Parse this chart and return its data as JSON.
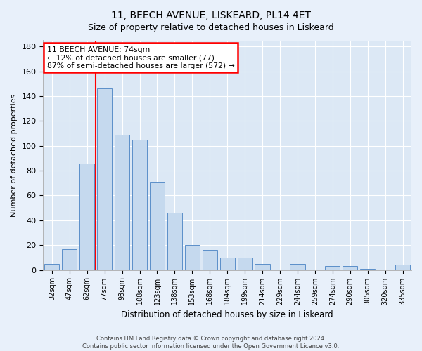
{
  "title1": "11, BEECH AVENUE, LISKEARD, PL14 4ET",
  "title2": "Size of property relative to detached houses in Liskeard",
  "xlabel": "Distribution of detached houses by size in Liskeard",
  "ylabel": "Number of detached properties",
  "categories": [
    "32sqm",
    "47sqm",
    "62sqm",
    "77sqm",
    "93sqm",
    "108sqm",
    "123sqm",
    "138sqm",
    "153sqm",
    "168sqm",
    "184sqm",
    "199sqm",
    "214sqm",
    "229sqm",
    "244sqm",
    "259sqm",
    "274sqm",
    "290sqm",
    "305sqm",
    "320sqm",
    "335sqm"
  ],
  "values": [
    5,
    17,
    86,
    146,
    109,
    105,
    71,
    46,
    20,
    16,
    10,
    10,
    5,
    0,
    5,
    0,
    3,
    3,
    1,
    0,
    4
  ],
  "bar_color": "#c5d9ee",
  "bar_edge_color": "#5b8fc9",
  "annotation_line1": "11 BEECH AVENUE: 74sqm",
  "annotation_line2": "← 12% of detached houses are smaller (77)",
  "annotation_line3": "87% of semi-detached houses are larger (572) →",
  "annotation_box_color": "white",
  "annotation_box_edge_color": "red",
  "vline_color": "red",
  "vline_x_index": 3,
  "ylim": [
    0,
    185
  ],
  "yticks": [
    0,
    20,
    40,
    60,
    80,
    100,
    120,
    140,
    160,
    180
  ],
  "footer1": "Contains HM Land Registry data © Crown copyright and database right 2024.",
  "footer2": "Contains public sector information licensed under the Open Government Licence v3.0.",
  "bg_color": "#e8f0fa",
  "plot_bg_color": "#dce8f5",
  "title1_fontsize": 10,
  "title2_fontsize": 9,
  "bar_width": 0.85,
  "grid_color": "#ffffff",
  "annotation_fontsize": 7.8
}
